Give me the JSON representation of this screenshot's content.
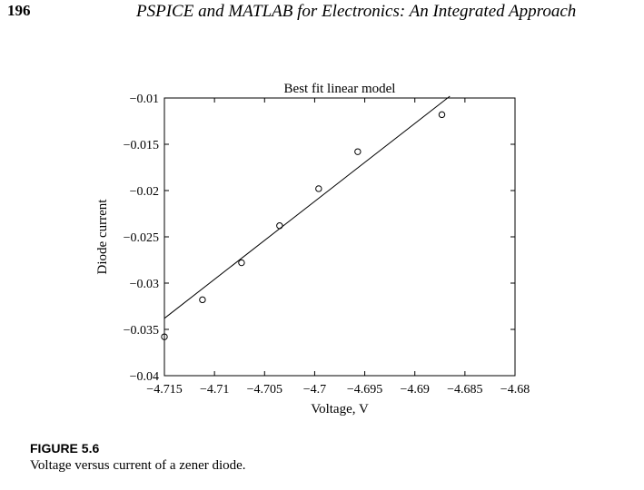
{
  "page": {
    "page_number": "196",
    "running_header": "PSPICE and MATLAB for Electronics: An Integrated Approach"
  },
  "figure": {
    "label": "FIGURE 5.6",
    "caption": "Voltage versus current of a zener diode."
  },
  "chart_data": {
    "type": "scatter",
    "title": "Best fit linear model",
    "xlabel": "Voltage, V",
    "ylabel": "Diode current",
    "xlim": [
      -4.715,
      -4.68
    ],
    "ylim": [
      -0.04,
      -0.01
    ],
    "xticks": [
      -4.715,
      -4.71,
      -4.705,
      -4.7,
      -4.695,
      -4.69,
      -4.685,
      -4.68
    ],
    "xtick_labels": [
      "−4.715",
      "−4.71",
      "−4.705",
      "−4.7",
      "−4.695",
      "−4.69",
      "−4.685",
      "−4.68"
    ],
    "yticks": [
      -0.04,
      -0.035,
      -0.03,
      -0.025,
      -0.02,
      -0.015,
      -0.01
    ],
    "ytick_labels": [
      "−0.04",
      "−0.035",
      "−0.03",
      "−0.025",
      "−0.02",
      "−0.015",
      "−0.01"
    ],
    "grid": false,
    "series": [
      {
        "kind": "markers",
        "marker": "open-circle",
        "x": [
          -4.715,
          -4.7112,
          -4.7073,
          -4.7035,
          -4.6996,
          -4.6957,
          -4.6873
        ],
        "y": [
          -0.0358,
          -0.0318,
          -0.0278,
          -0.0238,
          -0.0198,
          -0.0158,
          -0.0118
        ]
      },
      {
        "kind": "line",
        "x": [
          -4.715,
          -4.6865
        ],
        "y": [
          -0.0338,
          -0.0098
        ]
      }
    ],
    "colors": {
      "ink": "#000000",
      "background": "#ffffff"
    }
  }
}
